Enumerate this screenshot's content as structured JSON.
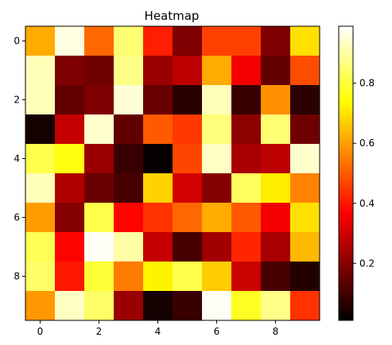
{
  "chart_data": {
    "type": "heatmap",
    "title": "Heatmap",
    "colormap": "hot",
    "rows": 10,
    "cols": 10,
    "xticks": [
      0,
      2,
      4,
      6,
      8
    ],
    "yticks": [
      0,
      2,
      4,
      6,
      8
    ],
    "colorbar_ticks": [
      0.2,
      0.4,
      0.6,
      0.8
    ],
    "vmin": 0.01,
    "vmax": 0.99,
    "values": [
      [
        0.62,
        0.97,
        0.52,
        0.86,
        0.41,
        0.18,
        0.46,
        0.46,
        0.18,
        0.7
      ],
      [
        0.93,
        0.18,
        0.16,
        0.88,
        0.22,
        0.27,
        0.62,
        0.35,
        0.14,
        0.48
      ],
      [
        0.93,
        0.14,
        0.18,
        0.96,
        0.15,
        0.06,
        0.93,
        0.08,
        0.58,
        0.06
      ],
      [
        0.03,
        0.28,
        0.95,
        0.14,
        0.5,
        0.45,
        0.87,
        0.2,
        0.86,
        0.16
      ],
      [
        0.82,
        0.76,
        0.22,
        0.08,
        0.01,
        0.47,
        0.94,
        0.24,
        0.27,
        0.95
      ],
      [
        0.93,
        0.25,
        0.15,
        0.1,
        0.68,
        0.3,
        0.19,
        0.84,
        0.72,
        0.56
      ],
      [
        0.6,
        0.19,
        0.82,
        0.37,
        0.44,
        0.52,
        0.62,
        0.5,
        0.35,
        0.7
      ],
      [
        0.83,
        0.37,
        0.99,
        0.91,
        0.28,
        0.1,
        0.23,
        0.42,
        0.24,
        0.64
      ],
      [
        0.85,
        0.4,
        0.8,
        0.55,
        0.73,
        0.82,
        0.67,
        0.29,
        0.1,
        0.05
      ],
      [
        0.59,
        0.94,
        0.85,
        0.22,
        0.03,
        0.08,
        0.99,
        0.78,
        0.88,
        0.44
      ]
    ]
  }
}
